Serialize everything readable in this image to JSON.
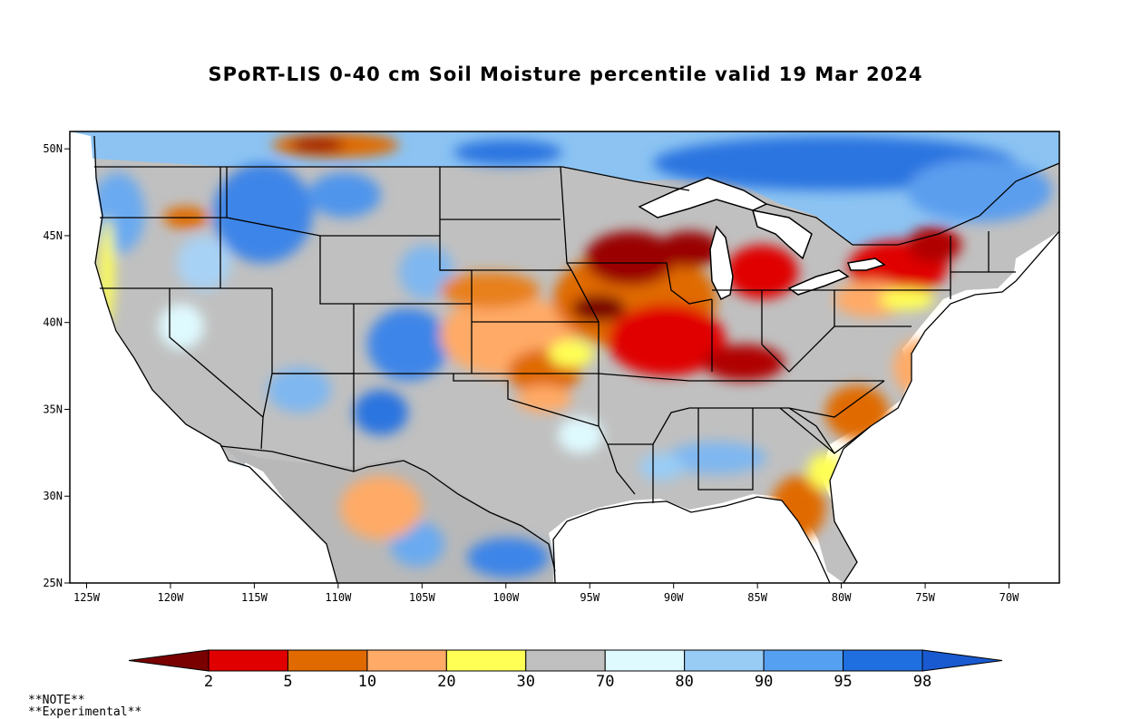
{
  "title": "SPoRT-LIS 0-40 cm Soil Moisture percentile valid 19 Mar 2024",
  "map": {
    "lat_ticks": [
      "50N",
      "45N",
      "40N",
      "35N",
      "30N",
      "25N"
    ],
    "lat_values": [
      50,
      45,
      40,
      35,
      30,
      25
    ],
    "lon_ticks": [
      "125W",
      "120W",
      "115W",
      "110W",
      "105W",
      "100W",
      "95W",
      "90W",
      "85W",
      "80W",
      "75W",
      "70W"
    ],
    "lon_values": [
      -125,
      -120,
      -115,
      -110,
      -105,
      -100,
      -95,
      -90,
      -85,
      -80,
      -75,
      -70
    ],
    "lon_range": [
      -126,
      -67
    ],
    "lat_range": [
      25,
      51
    ]
  },
  "colorbar": {
    "colors": [
      "#7a0000",
      "#e00000",
      "#e06a00",
      "#ffaa66",
      "#ffff55",
      "#c0c0c0",
      "#dffaff",
      "#99ccf5",
      "#55a0f0",
      "#1f6fe0",
      "#1a5ad0"
    ],
    "labels": [
      "2",
      "5",
      "10",
      "20",
      "30",
      "70",
      "80",
      "90",
      "95",
      "98"
    ]
  },
  "notes": [
    "**NOTE**",
    "**Experimental**"
  ]
}
